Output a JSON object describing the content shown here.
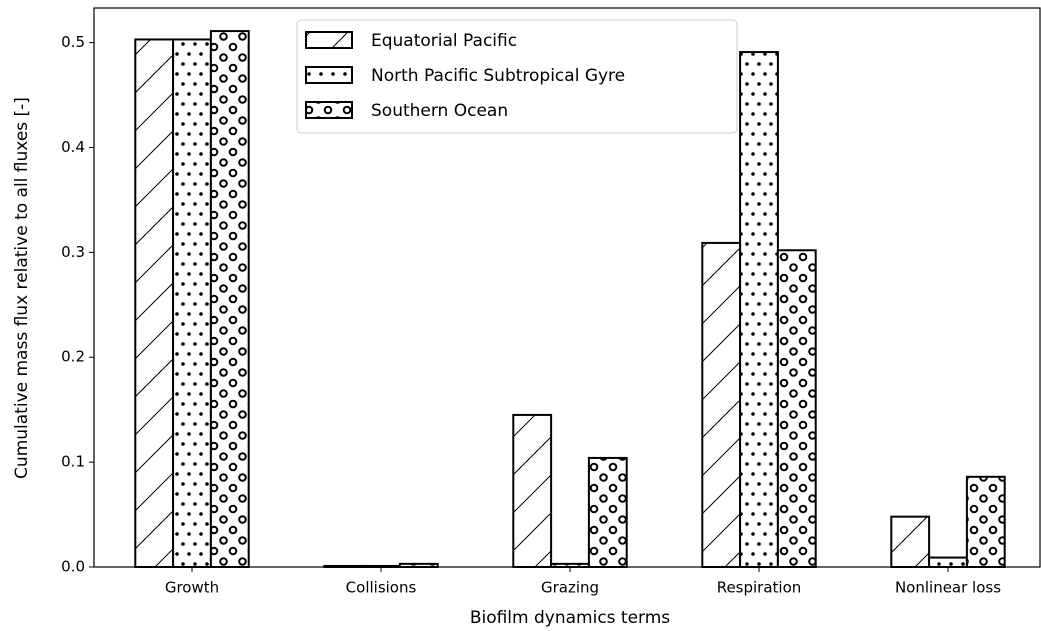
{
  "chart_data": {
    "type": "bar",
    "x_label": "Biofilm dynamics terms",
    "y_label": "Cumulative mass flux relative to all fluxes [-]",
    "categories": [
      "Growth",
      "Collisions",
      "Grazing",
      "Respiration",
      "Nonlinear loss"
    ],
    "series": [
      {
        "name": "Equatorial Pacific",
        "color": "#000000",
        "hatch": "/",
        "values": [
          0.503,
          0.001,
          0.145,
          0.309,
          0.048
        ]
      },
      {
        "name": "North Pacific Subtropical Gyre",
        "color": "#000000",
        "hatch": ".",
        "values": [
          0.503,
          0.001,
          0.003,
          0.491,
          0.009
        ]
      },
      {
        "name": "Southern Ocean",
        "color": "#000000",
        "hatch": "o",
        "values": [
          0.511,
          0.003,
          0.104,
          0.302,
          0.086
        ]
      }
    ],
    "ylim": [
      0,
      0.533
    ],
    "yticks": [
      {
        "value": 0,
        "label": "0.0"
      },
      0.1,
      0.2,
      0.3,
      0.4,
      0.5
    ],
    "legend": "upper center",
    "grid": false
  }
}
